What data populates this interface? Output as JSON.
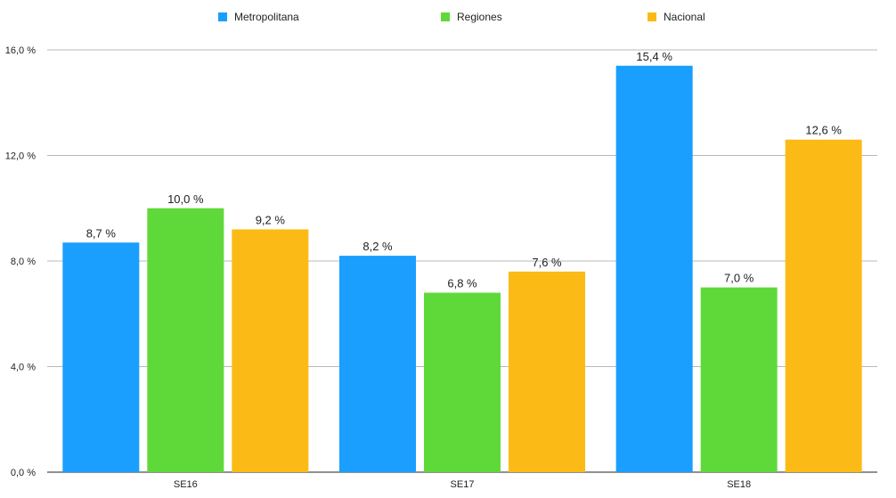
{
  "chart_data": {
    "type": "bar",
    "categories": [
      "SE16",
      "SE17",
      "SE18"
    ],
    "series": [
      {
        "name": "Metropolitana",
        "color": "#1a9ffe",
        "values": [
          8.7,
          8.2,
          15.4
        ],
        "labels": [
          "8,7 %",
          "8,2 %",
          "15,4 %"
        ]
      },
      {
        "name": "Regiones",
        "color": "#5fd93a",
        "values": [
          10.0,
          6.8,
          7.0
        ],
        "labels": [
          "10,0 %",
          "6,8 %",
          "7,0 %"
        ]
      },
      {
        "name": "Nacional",
        "color": "#fcba16",
        "values": [
          9.2,
          7.6,
          12.6
        ],
        "labels": [
          "9,2 %",
          "7,6 %",
          "12,6 %"
        ]
      }
    ],
    "ylim": [
      0,
      16
    ],
    "yticks": [
      0,
      4,
      8,
      12,
      16
    ],
    "ytick_labels": [
      "0,0 %",
      "4,0 %",
      "8,0 %",
      "12,0 %",
      "16,0 %"
    ],
    "grid": true,
    "legend_position": "top-center",
    "title": "",
    "xlabel": "",
    "ylabel": ""
  }
}
